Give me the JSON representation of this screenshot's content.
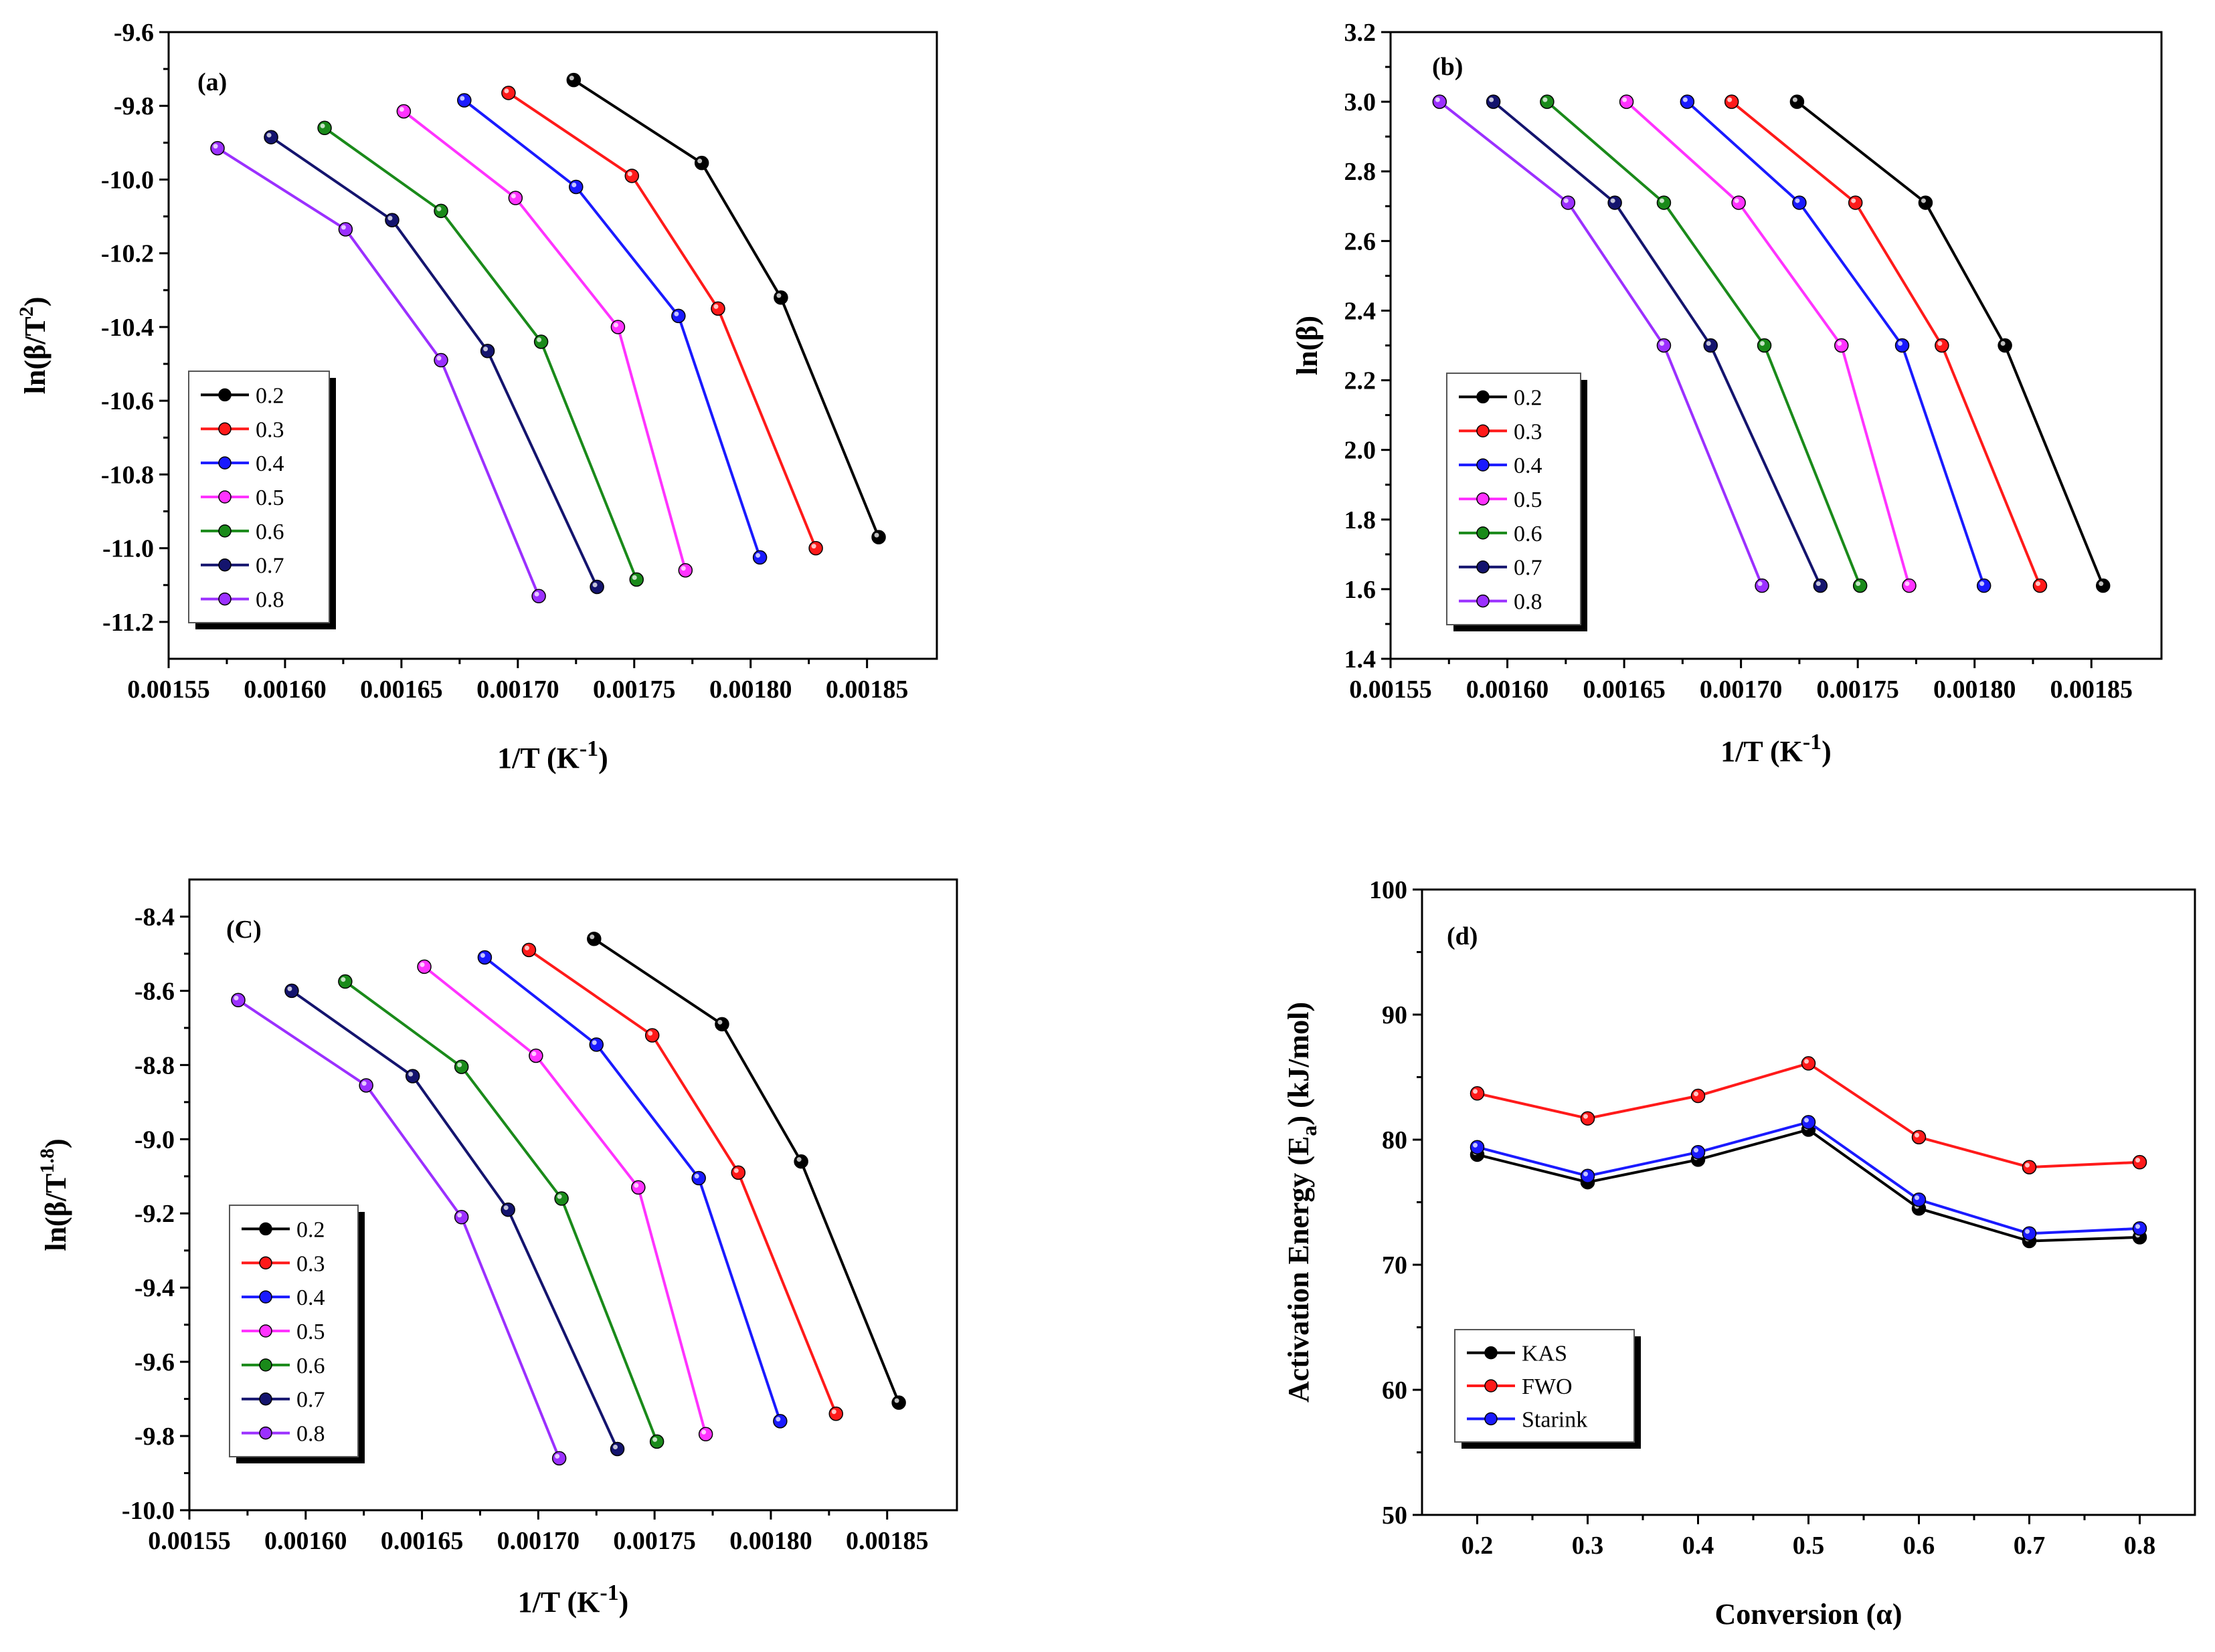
{
  "colors": {
    "0.2": "#000000",
    "0.3": "#ff1a1a",
    "0.4": "#1a1aff",
    "0.5": "#ff33ff",
    "0.6": "#1a8a1a",
    "0.7": "#14146e",
    "0.8": "#9b30ff",
    "KAS": "#000000",
    "FWO": "#ff1a1a",
    "Starink": "#1a1aff"
  },
  "chart_data": [
    {
      "id": "a",
      "type": "line",
      "panel_label": "(a)",
      "xlabel": "1/T (K",
      "xlabel_sup": "-1",
      "xlabel_end": ")",
      "ylabel": "ln(β/T",
      "ylabel_sup": "2",
      "ylabel_end": ")",
      "xlim": [
        0.00155,
        0.00188
      ],
      "ylim": [
        -11.3,
        -9.6
      ],
      "xticks": [
        "0.00155",
        "0.00160",
        "0.00165",
        "0.00170",
        "0.00175",
        "0.00180",
        "0.00185"
      ],
      "yticks": [
        "-9.6",
        "-9.8",
        "-10.0",
        "-10.2",
        "-10.4",
        "-10.6",
        "-10.8",
        "-11.0",
        "-11.2"
      ],
      "legend": "center-left",
      "series": [
        {
          "name": "0.2",
          "x": [
            0.001724,
            0.001779,
            0.001813,
            0.001855
          ],
          "y": [
            -9.73,
            -9.955,
            -10.32,
            -10.97
          ]
        },
        {
          "name": "0.3",
          "x": [
            0.001696,
            0.001749,
            0.001786,
            0.001828
          ],
          "y": [
            -9.765,
            -9.99,
            -10.35,
            -11.0
          ]
        },
        {
          "name": "0.4",
          "x": [
            0.001677,
            0.001725,
            0.001769,
            0.001804
          ],
          "y": [
            -9.785,
            -10.02,
            -10.37,
            -11.025
          ]
        },
        {
          "name": "0.5",
          "x": [
            0.001651,
            0.001699,
            0.001743,
            0.001772
          ],
          "y": [
            -9.815,
            -10.05,
            -10.4,
            -11.06
          ]
        },
        {
          "name": "0.6",
          "x": [
            0.001617,
            0.001667,
            0.00171,
            0.001751
          ],
          "y": [
            -9.86,
            -10.085,
            -10.44,
            -11.085
          ]
        },
        {
          "name": "0.7",
          "x": [
            0.001594,
            0.001646,
            0.001687,
            0.001734
          ],
          "y": [
            -9.885,
            -10.11,
            -10.465,
            -11.105
          ]
        },
        {
          "name": "0.8",
          "x": [
            0.001571,
            0.001626,
            0.001667,
            0.001709
          ],
          "y": [
            -9.915,
            -10.135,
            -10.49,
            -11.13
          ]
        }
      ]
    },
    {
      "id": "b",
      "type": "line",
      "panel_label": "(b)",
      "xlabel": "1/T (K",
      "xlabel_sup": "-1",
      "xlabel_end": ")",
      "ylabel": "ln(β)",
      "ylabel_sup": "",
      "ylabel_end": "",
      "xlim": [
        0.00155,
        0.00188
      ],
      "ylim": [
        1.4,
        3.2
      ],
      "xticks": [
        "0.00155",
        "0.00160",
        "0.00165",
        "0.00170",
        "0.00175",
        "0.00180",
        "0.00185"
      ],
      "yticks": [
        "1.4",
        "1.6",
        "1.8",
        "2.0",
        "2.2",
        "2.4",
        "2.6",
        "2.8",
        "3.0",
        "3.2"
      ],
      "legend": "bottom-left",
      "series": [
        {
          "name": "0.2",
          "x": [
            0.001724,
            0.001779,
            0.001813,
            0.001855
          ],
          "y": [
            3.0,
            2.71,
            2.3,
            1.61
          ]
        },
        {
          "name": "0.3",
          "x": [
            0.001696,
            0.001749,
            0.001786,
            0.001828
          ],
          "y": [
            3.0,
            2.71,
            2.3,
            1.61
          ]
        },
        {
          "name": "0.4",
          "x": [
            0.001677,
            0.001725,
            0.001769,
            0.001804
          ],
          "y": [
            3.0,
            2.71,
            2.3,
            1.61
          ]
        },
        {
          "name": "0.5",
          "x": [
            0.001651,
            0.001699,
            0.001743,
            0.001772
          ],
          "y": [
            3.0,
            2.71,
            2.3,
            1.61
          ]
        },
        {
          "name": "0.6",
          "x": [
            0.001617,
            0.001667,
            0.00171,
            0.001751
          ],
          "y": [
            3.0,
            2.71,
            2.3,
            1.61
          ]
        },
        {
          "name": "0.7",
          "x": [
            0.001594,
            0.001646,
            0.001687,
            0.001734
          ],
          "y": [
            3.0,
            2.71,
            2.3,
            1.61
          ]
        },
        {
          "name": "0.8",
          "x": [
            0.001571,
            0.001626,
            0.001667,
            0.001709
          ],
          "y": [
            3.0,
            2.71,
            2.3,
            1.61
          ]
        }
      ]
    },
    {
      "id": "c",
      "type": "line",
      "panel_label": "(C)",
      "xlabel": "1/T (K",
      "xlabel_sup": "-1",
      "xlabel_end": ")",
      "ylabel": "ln(β/T",
      "ylabel_sup": "1.8",
      "ylabel_end": ")",
      "xlim": [
        0.00155,
        0.00188
      ],
      "ylim": [
        -10.0,
        -8.3
      ],
      "xticks": [
        "0.00155",
        "0.00160",
        "0.00165",
        "0.00170",
        "0.00175",
        "0.00180",
        "0.00185"
      ],
      "yticks": [
        "-8.4",
        "-8.6",
        "-8.8",
        "-9.0",
        "-9.2",
        "-9.4",
        "-9.6",
        "-9.8",
        "-10.0"
      ],
      "legend": "bottom-left",
      "series": [
        {
          "name": "0.2",
          "x": [
            0.001724,
            0.001779,
            0.001813,
            0.001855
          ],
          "y": [
            -8.46,
            -8.69,
            -9.06,
            -9.71
          ]
        },
        {
          "name": "0.3",
          "x": [
            0.001696,
            0.001749,
            0.001786,
            0.001828
          ],
          "y": [
            -8.49,
            -8.72,
            -9.09,
            -9.74
          ]
        },
        {
          "name": "0.4",
          "x": [
            0.001677,
            0.001725,
            0.001769,
            0.001804
          ],
          "y": [
            -8.51,
            -8.745,
            -9.105,
            -9.76
          ]
        },
        {
          "name": "0.5",
          "x": [
            0.001651,
            0.001699,
            0.001743,
            0.001772
          ],
          "y": [
            -8.535,
            -8.775,
            -9.13,
            -9.795
          ]
        },
        {
          "name": "0.6",
          "x": [
            0.001617,
            0.001667,
            0.00171,
            0.001751
          ],
          "y": [
            -8.575,
            -8.805,
            -9.16,
            -9.815
          ]
        },
        {
          "name": "0.7",
          "x": [
            0.001594,
            0.001646,
            0.001687,
            0.001734
          ],
          "y": [
            -8.6,
            -8.83,
            -9.19,
            -9.835
          ]
        },
        {
          "name": "0.8",
          "x": [
            0.001571,
            0.001626,
            0.001667,
            0.001709
          ],
          "y": [
            -8.625,
            -8.855,
            -9.21,
            -9.86
          ]
        }
      ]
    },
    {
      "id": "d",
      "type": "line",
      "panel_label": "(d)",
      "xlabel": "Conversion (α)",
      "xlabel_sup": "",
      "xlabel_end": "",
      "ylabel": "Activation Energy (E",
      "ylabel_sub": "a",
      "ylabel_end": ") (kJ/mol)",
      "xlim": [
        0.15,
        0.85
      ],
      "ylim": [
        50,
        100
      ],
      "xticks": [
        "0.2",
        "0.3",
        "0.4",
        "0.5",
        "0.6",
        "0.7",
        "0.8"
      ],
      "yticks": [
        "50",
        "60",
        "70",
        "80",
        "90",
        "100"
      ],
      "legend": "bottom-left",
      "series": [
        {
          "name": "KAS",
          "x": [
            0.2,
            0.3,
            0.4,
            0.5,
            0.6,
            0.7,
            0.8
          ],
          "y": [
            78.8,
            76.6,
            78.4,
            80.8,
            74.5,
            71.9,
            72.2
          ]
        },
        {
          "name": "FWO",
          "x": [
            0.2,
            0.3,
            0.4,
            0.5,
            0.6,
            0.7,
            0.8
          ],
          "y": [
            83.7,
            81.7,
            83.5,
            86.1,
            80.2,
            77.8,
            78.2
          ]
        },
        {
          "name": "Starink",
          "x": [
            0.2,
            0.3,
            0.4,
            0.5,
            0.6,
            0.7,
            0.8
          ],
          "y": [
            79.4,
            77.1,
            79.0,
            81.4,
            75.2,
            72.5,
            72.9
          ]
        }
      ]
    }
  ]
}
